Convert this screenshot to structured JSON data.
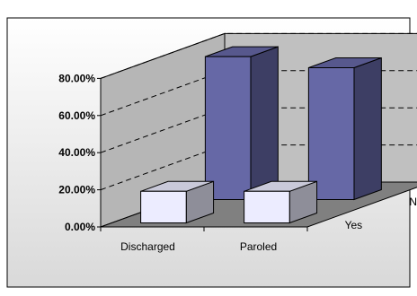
{
  "chart_data": {
    "type": "bar",
    "subtype": "3d-column",
    "categories": [
      "Discharged",
      "Paroled"
    ],
    "series": [
      {
        "name": "Yes",
        "values": [
          17,
          17
        ],
        "color": "#ececff"
      },
      {
        "name": "No",
        "values": [
          77,
          71
        ],
        "color": "#6668a6"
      }
    ],
    "y_ticks": [
      "0.00%",
      "20.00%",
      "40.00%",
      "60.00%",
      "80.00%"
    ],
    "ylim": [
      0,
      80
    ],
    "grid": true,
    "wall_color": "#c0c0c0",
    "floor_color": "#808080"
  }
}
